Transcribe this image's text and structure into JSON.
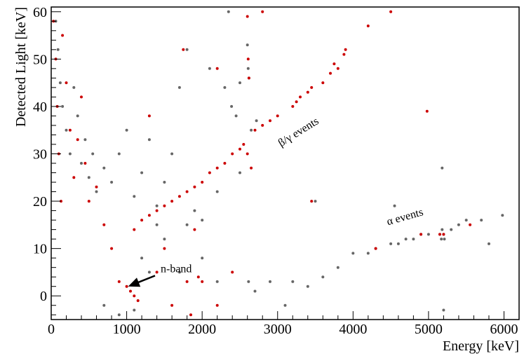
{
  "chart_data": {
    "type": "scatter",
    "title": "",
    "xlabel": "Energy [keV]",
    "ylabel": "Detected Light [keV]",
    "xlim": [
      0,
      6200
    ],
    "ylim": [
      -5,
      61
    ],
    "x_ticks": [
      0,
      1000,
      2000,
      3000,
      4000,
      5000,
      6000
    ],
    "y_ticks": [
      0,
      10,
      20,
      30,
      40,
      50,
      60
    ],
    "grid": false,
    "legend": "none",
    "colors": {
      "grey_series": "#666666",
      "red_series": "#cc0000"
    },
    "series": [
      {
        "color": "#666666",
        "points": [
          [
            60,
            58
          ],
          [
            90,
            52
          ],
          [
            120,
            45
          ],
          [
            150,
            40
          ],
          [
            200,
            35
          ],
          [
            250,
            30
          ],
          [
            300,
            44
          ],
          [
            350,
            38
          ],
          [
            400,
            28
          ],
          [
            450,
            33
          ],
          [
            500,
            25
          ],
          [
            550,
            30
          ],
          [
            600,
            22
          ],
          [
            700,
            27
          ],
          [
            800,
            24
          ],
          [
            900,
            30
          ],
          [
            1000,
            35
          ],
          [
            1100,
            21
          ],
          [
            1200,
            26
          ],
          [
            1300,
            33
          ],
          [
            1400,
            19
          ],
          [
            1500,
            24
          ],
          [
            1600,
            30
          ],
          [
            1700,
            44
          ],
          [
            1800,
            15
          ],
          [
            1900,
            18
          ],
          [
            2000,
            16
          ],
          [
            2100,
            48
          ],
          [
            2200,
            22
          ],
          [
            2300,
            44
          ],
          [
            2350,
            60
          ],
          [
            2500,
            45
          ],
          [
            2600,
            53
          ],
          [
            2610,
            48
          ],
          [
            2620,
            46
          ],
          [
            1800,
            52
          ],
          [
            1500,
            12
          ],
          [
            1200,
            8
          ],
          [
            900,
            -4
          ],
          [
            700,
            -2
          ],
          [
            1100,
            -3
          ],
          [
            2615,
            3
          ],
          [
            2700,
            1
          ],
          [
            2900,
            3
          ],
          [
            3100,
            -2
          ],
          [
            3200,
            3
          ],
          [
            3400,
            2
          ],
          [
            3600,
            4
          ],
          [
            3800,
            6
          ],
          [
            4000,
            9
          ],
          [
            4200,
            9
          ],
          [
            4300,
            10
          ],
          [
            4500,
            11
          ],
          [
            4600,
            11
          ],
          [
            4700,
            12
          ],
          [
            4800,
            12
          ],
          [
            4900,
            13
          ],
          [
            5000,
            13
          ],
          [
            5150,
            13
          ],
          [
            5170,
            12
          ],
          [
            5180,
            14
          ],
          [
            5200,
            13
          ],
          [
            5210,
            12
          ],
          [
            5300,
            14
          ],
          [
            5400,
            15
          ],
          [
            5500,
            16
          ],
          [
            5700,
            16
          ],
          [
            5800,
            11
          ],
          [
            5980,
            17
          ],
          [
            5180,
            27
          ],
          [
            5200,
            -3
          ],
          [
            4550,
            19
          ],
          [
            1400,
            15
          ],
          [
            1300,
            5
          ],
          [
            2000,
            8
          ],
          [
            2200,
            3
          ],
          [
            1700,
            5
          ],
          [
            2500,
            26
          ],
          [
            2450,
            38
          ],
          [
            2390,
            40
          ],
          [
            2650,
            35
          ],
          [
            2720,
            37
          ],
          [
            3500,
            20
          ]
        ]
      },
      {
        "color": "#cc0000",
        "points": [
          [
            30,
            58
          ],
          [
            60,
            50
          ],
          [
            80,
            40
          ],
          [
            100,
            30
          ],
          [
            130,
            20
          ],
          [
            150,
            55
          ],
          [
            200,
            45
          ],
          [
            250,
            35
          ],
          [
            300,
            25
          ],
          [
            350,
            33
          ],
          [
            400,
            42
          ],
          [
            450,
            28
          ],
          [
            500,
            20
          ],
          [
            600,
            23
          ],
          [
            700,
            15
          ],
          [
            800,
            10
          ],
          [
            900,
            3
          ],
          [
            1000,
            2
          ],
          [
            1050,
            1
          ],
          [
            1100,
            0
          ],
          [
            1150,
            -1
          ],
          [
            1300,
            38
          ],
          [
            1400,
            5
          ],
          [
            1500,
            10
          ],
          [
            1600,
            -2
          ],
          [
            1750,
            52
          ],
          [
            1800,
            3
          ],
          [
            2200,
            48
          ],
          [
            2600,
            59
          ],
          [
            2800,
            60
          ],
          [
            2610,
            50
          ],
          [
            2620,
            46
          ],
          [
            3900,
            52
          ],
          [
            3880,
            51
          ],
          [
            3800,
            48
          ],
          [
            3750,
            49
          ],
          [
            3700,
            47
          ],
          [
            3600,
            45
          ],
          [
            3450,
            44
          ],
          [
            3400,
            43
          ],
          [
            3300,
            42
          ],
          [
            3250,
            41
          ],
          [
            3200,
            40
          ],
          [
            3000,
            38
          ],
          [
            2900,
            37
          ],
          [
            2800,
            36
          ],
          [
            2700,
            35
          ],
          [
            2550,
            32
          ],
          [
            2500,
            31
          ],
          [
            2400,
            30
          ],
          [
            2300,
            28
          ],
          [
            2200,
            27
          ],
          [
            2100,
            26
          ],
          [
            2000,
            24
          ],
          [
            1900,
            23
          ],
          [
            1800,
            22
          ],
          [
            1700,
            21
          ],
          [
            1600,
            20
          ],
          [
            1500,
            19
          ],
          [
            1400,
            18
          ],
          [
            1300,
            17
          ],
          [
            1200,
            16
          ],
          [
            1100,
            14
          ],
          [
            4200,
            57
          ],
          [
            4500,
            60
          ],
          [
            4980,
            39
          ],
          [
            3450,
            20
          ],
          [
            4300,
            10
          ],
          [
            5150,
            13
          ],
          [
            5200,
            13
          ],
          [
            5550,
            15
          ],
          [
            4900,
            13
          ],
          [
            2600,
            30
          ],
          [
            2650,
            27
          ],
          [
            2000,
            3
          ],
          [
            2200,
            -2
          ],
          [
            1850,
            -4
          ],
          [
            1950,
            4
          ],
          [
            2400,
            5
          ],
          [
            1900,
            14
          ]
        ]
      }
    ],
    "annotations": [
      {
        "text": "β/γ events",
        "x": 3300,
        "y": 34,
        "rotation": -32
      },
      {
        "text": "α events",
        "x": 4700,
        "y": 16,
        "rotation": -16
      },
      {
        "text": "n-band",
        "x": 1450,
        "y": 5,
        "arrow_to": [
          1020,
          2
        ]
      }
    ]
  }
}
